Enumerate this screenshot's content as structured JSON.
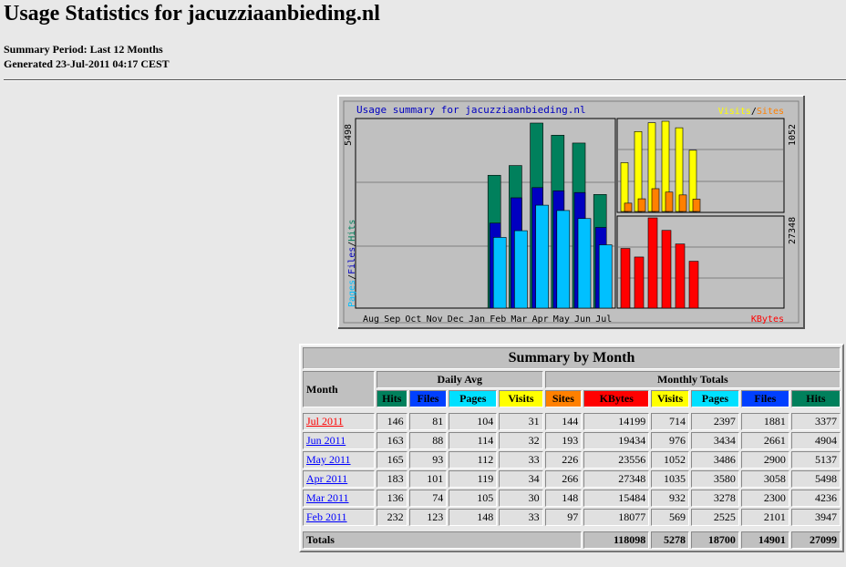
{
  "header": {
    "title": "Usage Statistics for jacuzziaanbieding.nl",
    "period": "Summary Period: Last 12 Months",
    "generated": "Generated 23-Jul-2011 04:17 CEST"
  },
  "graph": {
    "title": "Usage summary for jacuzziaanbieding.nl",
    "months": [
      "Aug",
      "Sep",
      "Oct",
      "Nov",
      "Dec",
      "Jan",
      "Feb",
      "Mar",
      "Apr",
      "May",
      "Jun",
      "Jul"
    ],
    "hits_max": 5498,
    "visits_max": 1052,
    "kbytes_max": 27348,
    "separator": "/",
    "left_legend": [
      {
        "name": "Pages",
        "color": "#00c0ff"
      },
      {
        "name": "Files",
        "color": "#0000c0"
      },
      {
        "name": "Hits",
        "color": "#00805c"
      }
    ],
    "top_legend": [
      {
        "name": "Visits",
        "color": "#ffff00"
      },
      {
        "name": "Sites",
        "color": "#ff8000"
      }
    ],
    "kbytes_legend": {
      "name": "KBytes",
      "color": "#ff0000"
    }
  },
  "table": {
    "title": "Summary by Month",
    "month_header": "Month",
    "daily_avg": "Daily Avg",
    "monthly_totals": "Monthly Totals",
    "columns": [
      {
        "name": "Hits",
        "color": "#00805c"
      },
      {
        "name": "Files",
        "color": "#0040ff"
      },
      {
        "name": "Pages",
        "color": "#00e0ff"
      },
      {
        "name": "Visits",
        "color": "#ffff00"
      },
      {
        "name": "Sites",
        "color": "#ff8000"
      },
      {
        "name": "KBytes",
        "color": "#ff0000"
      },
      {
        "name": "Visits",
        "color": "#ffff00"
      },
      {
        "name": "Pages",
        "color": "#00e0ff"
      },
      {
        "name": "Files",
        "color": "#0040ff"
      },
      {
        "name": "Hits",
        "color": "#00805c"
      }
    ],
    "rows": [
      {
        "month": "Jul 2011",
        "link_color": "#ff0000",
        "values": [
          146,
          81,
          104,
          31,
          144,
          14199,
          714,
          2397,
          1881,
          3377
        ]
      },
      {
        "month": "Jun 2011",
        "link_color": "#0000ff",
        "values": [
          163,
          88,
          114,
          32,
          193,
          19434,
          976,
          3434,
          2661,
          4904
        ]
      },
      {
        "month": "May 2011",
        "link_color": "#0000ff",
        "values": [
          165,
          93,
          112,
          33,
          226,
          23556,
          1052,
          3486,
          2900,
          5137
        ]
      },
      {
        "month": "Apr 2011",
        "link_color": "#0000ff",
        "values": [
          183,
          101,
          119,
          34,
          266,
          27348,
          1035,
          3580,
          3058,
          5498
        ]
      },
      {
        "month": "Mar 2011",
        "link_color": "#0000ff",
        "values": [
          136,
          74,
          105,
          30,
          148,
          15484,
          932,
          3278,
          2300,
          4236
        ]
      },
      {
        "month": "Feb 2011",
        "link_color": "#0000ff",
        "values": [
          232,
          123,
          148,
          33,
          97,
          18077,
          569,
          2525,
          2101,
          3947
        ]
      }
    ],
    "totals": {
      "label": "Totals",
      "values": [
        118098,
        5278,
        18700,
        14901,
        27099
      ]
    }
  }
}
